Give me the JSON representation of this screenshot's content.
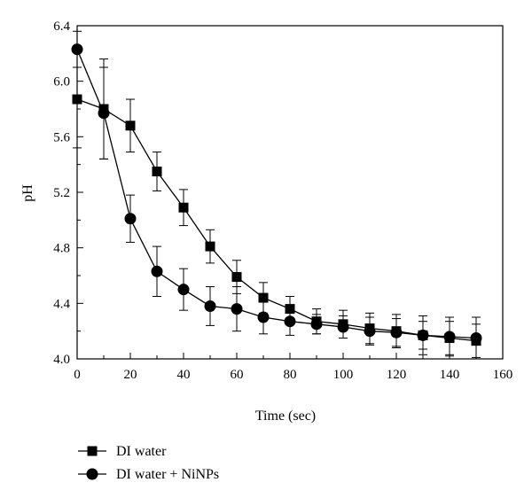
{
  "chart_data": {
    "type": "line",
    "title": "",
    "xlabel": "Time (sec)",
    "ylabel": "pH",
    "xlim": [
      0,
      160
    ],
    "ylim": [
      4.0,
      6.4
    ],
    "xticks": [
      "0",
      "20",
      "40",
      "60",
      "80",
      "100",
      "120",
      "140",
      "160"
    ],
    "yticks": [
      "4.0",
      "4.4",
      "4.8",
      "5.2",
      "5.6",
      "6.0",
      "6.4"
    ],
    "grid": false,
    "legend_position": "bottom-left",
    "x": [
      0,
      10,
      20,
      30,
      40,
      50,
      60,
      70,
      80,
      90,
      100,
      110,
      120,
      130,
      140,
      150
    ],
    "series": [
      {
        "name": "DI water",
        "marker": "square",
        "color": "#000000",
        "values": [
          5.87,
          5.8,
          5.68,
          5.35,
          5.09,
          4.81,
          4.59,
          4.44,
          4.36,
          4.27,
          4.25,
          4.22,
          4.2,
          4.17,
          4.15,
          4.13
        ],
        "errors": [
          0.35,
          0.36,
          0.19,
          0.14,
          0.13,
          0.12,
          0.12,
          0.11,
          0.09,
          0.09,
          0.1,
          0.11,
          0.12,
          0.14,
          0.12,
          0.12
        ]
      },
      {
        "name": "DI water + NiNPs",
        "marker": "circle",
        "color": "#000000",
        "values": [
          6.23,
          5.77,
          5.01,
          4.63,
          4.5,
          4.38,
          4.36,
          4.3,
          4.27,
          4.25,
          4.23,
          4.2,
          4.19,
          4.17,
          4.16,
          4.15
        ],
        "errors": [
          0.13,
          0.33,
          0.17,
          0.18,
          0.15,
          0.14,
          0.16,
          0.12,
          0.1,
          0.07,
          0.08,
          0.1,
          0.1,
          0.1,
          0.14,
          0.15
        ]
      }
    ]
  }
}
